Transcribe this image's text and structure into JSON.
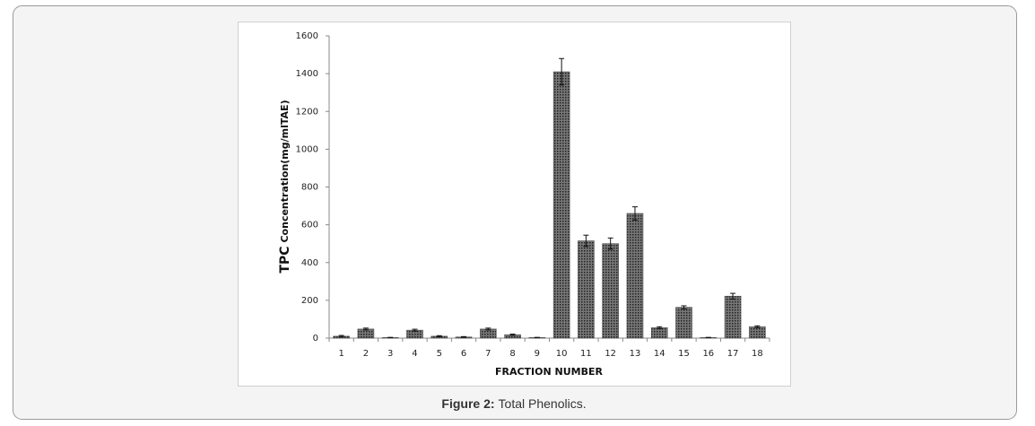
{
  "chart_data": {
    "type": "bar",
    "ylabel_main": "TPC",
    "ylabel_sub": "Concentration(mg/mlTAE)",
    "xlabel": "FRACTION NUMBER",
    "categories": [
      "1",
      "2",
      "3",
      "4",
      "5",
      "6",
      "7",
      "8",
      "9",
      "10",
      "11",
      "12",
      "13",
      "14",
      "15",
      "16",
      "17",
      "18"
    ],
    "values": [
      10,
      48,
      3,
      42,
      10,
      6,
      48,
      18,
      3,
      1410,
      515,
      500,
      660,
      55,
      163,
      3,
      222,
      60
    ],
    "errors": [
      4,
      5,
      1,
      5,
      3,
      2,
      5,
      3,
      1,
      70,
      30,
      30,
      35,
      5,
      8,
      1,
      15,
      5
    ],
    "color": "#4d4d4d",
    "ylim": [
      0,
      1600
    ],
    "yticks": [
      0,
      200,
      400,
      600,
      800,
      1000,
      1200,
      1400,
      1600
    ],
    "grid": false
  },
  "caption": {
    "label": "Figure 2:",
    "text": "Total Phenolics."
  }
}
